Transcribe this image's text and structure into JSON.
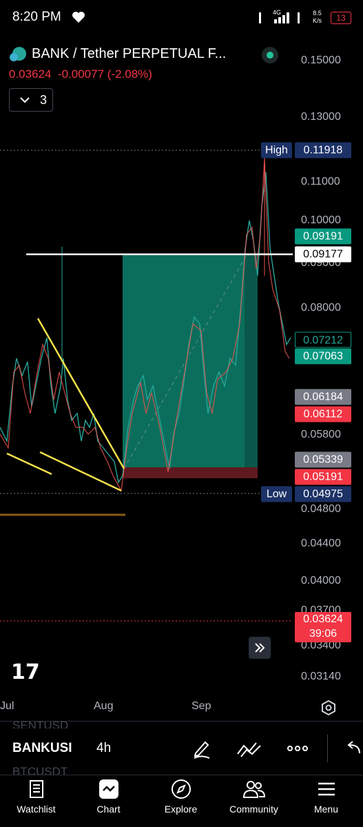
{
  "status_bar": {
    "time": "8:20 PM",
    "network": "4G",
    "speed": "8.5",
    "speed_unit": "K/s",
    "battery": "13"
  },
  "symbol": {
    "name": "BANK / Tether PERPETUAL F...",
    "price": "0.03624",
    "change": "-0.00077",
    "change_pct": "(-2.08%)",
    "indicators_count": "3"
  },
  "price_axis": [
    "0.15000",
    "0.13000",
    "0.11000",
    "0.10000",
    "0.09000",
    "0.08000",
    "0.05800",
    "0.04800",
    "0.04400",
    "0.04000",
    "0.03700",
    "0.03400",
    "0.03140"
  ],
  "price_tags": [
    {
      "label": "High",
      "value": "0.11918"
    },
    {
      "value": "0.09191"
    },
    {
      "value": "0.09177"
    },
    {
      "value": "0.07212"
    },
    {
      "value": "0.07063"
    },
    {
      "value": "0.06184"
    },
    {
      "value": "0.06112"
    },
    {
      "value": "0.05339"
    },
    {
      "value": "0.05191"
    },
    {
      "label": "Low",
      "value": "0.04975"
    },
    {
      "value": "0.03624",
      "countdown": "39:06"
    }
  ],
  "time_axis": [
    "Jul",
    "Aug",
    "Sep"
  ],
  "toolbar": {
    "symbol_above": "SENTUSD",
    "symbol": "BANKUSI",
    "symbol_below": "BTCUSDT",
    "interval": "4h"
  },
  "nav": [
    "Watchlist",
    "Chart",
    "Explore",
    "Community",
    "Menu"
  ]
}
